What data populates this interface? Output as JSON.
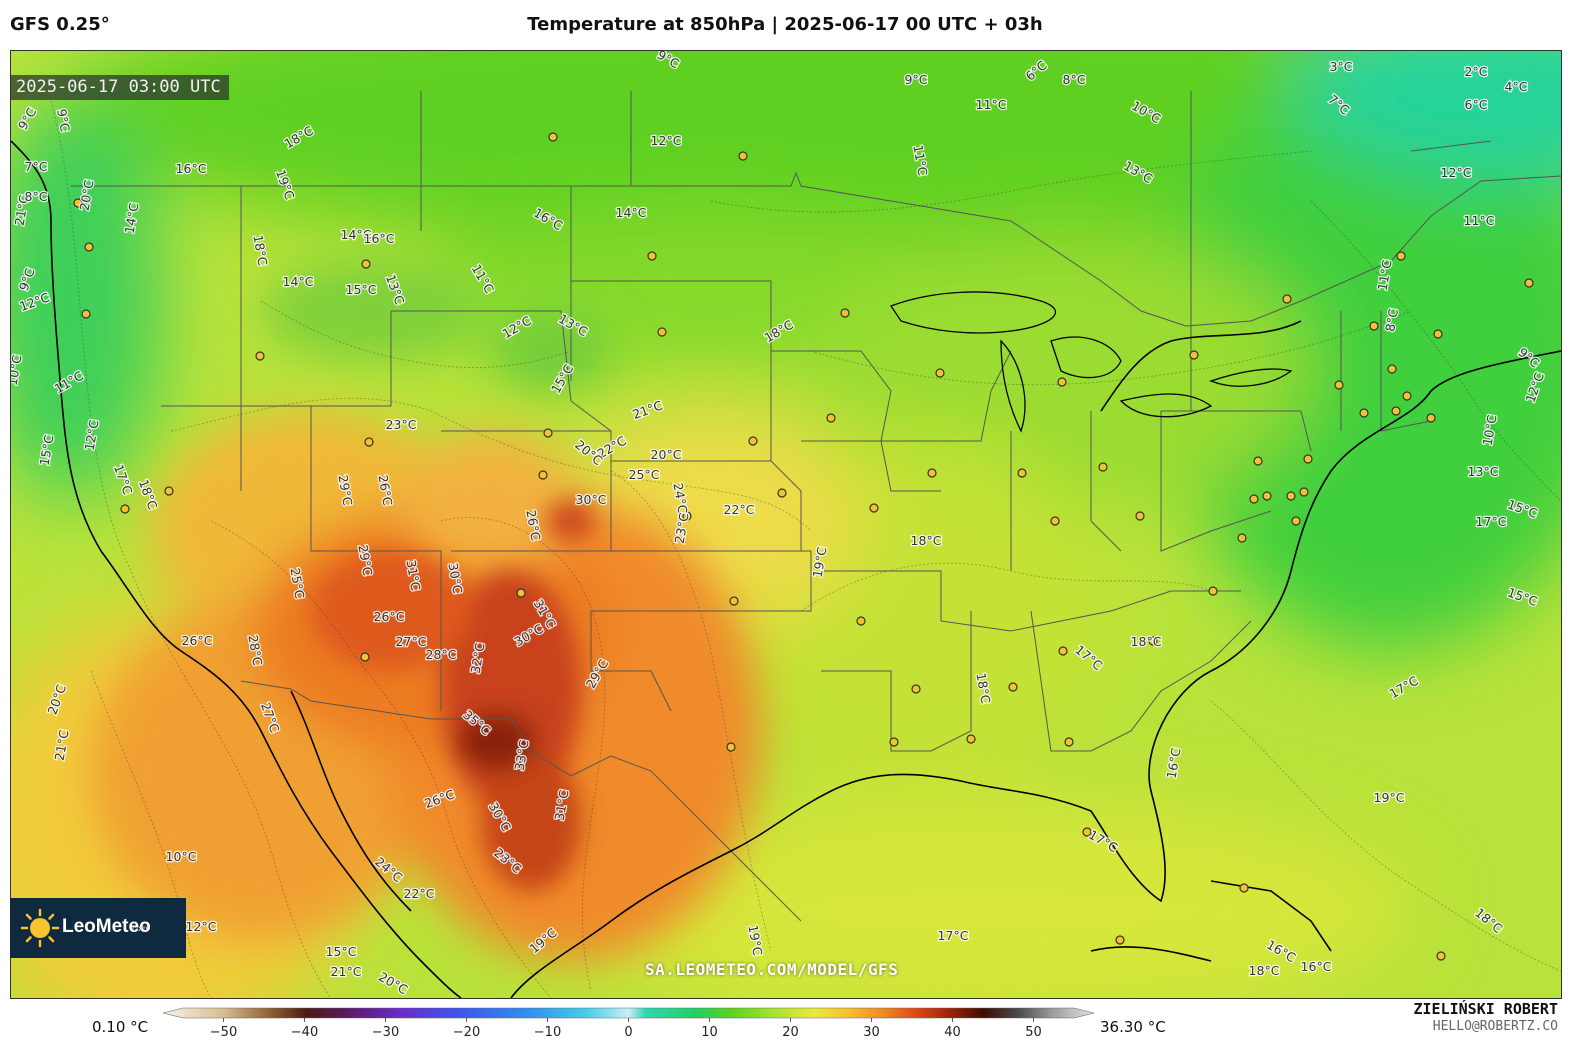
{
  "header": {
    "model": "GFS 0.25°",
    "title": "Temperature at 850hPa | 2025-06-17 00 UTC + 03h"
  },
  "map": {
    "timestamp": "2025-06-17 03:00 UTC",
    "watermark": "SA.LEOMETEO.COM/MODEL/GFS",
    "logo": {
      "text": "LeoMeteo",
      "domain": ".com"
    },
    "temperature_labels": [
      {
        "text": "3°C"
      },
      {
        "text": "2°C"
      },
      {
        "text": "4°C"
      },
      {
        "text": "6°C"
      },
      {
        "text": "7°C"
      },
      {
        "text": "8°C"
      },
      {
        "text": "9°C"
      },
      {
        "text": "6°C"
      },
      {
        "text": "9°C"
      },
      {
        "text": "11°C"
      },
      {
        "text": "10°C"
      },
      {
        "text": "13°C"
      },
      {
        "text": "12°C"
      },
      {
        "text": "11°C"
      },
      {
        "text": "12°C"
      },
      {
        "text": "9°C"
      },
      {
        "text": "18°C"
      },
      {
        "text": "16°C"
      },
      {
        "text": "19°C"
      },
      {
        "text": "16°C"
      },
      {
        "text": "14°C"
      },
      {
        "text": "14°C"
      },
      {
        "text": "16°C"
      },
      {
        "text": "18°C"
      },
      {
        "text": "13°C"
      },
      {
        "text": "15°C"
      },
      {
        "text": "14°C"
      },
      {
        "text": "11°C"
      },
      {
        "text": "12°C"
      },
      {
        "text": "13°C"
      },
      {
        "text": "15°C"
      },
      {
        "text": "18°C"
      },
      {
        "text": "21°C"
      },
      {
        "text": "22°C"
      },
      {
        "text": "20°C"
      },
      {
        "text": "20°C"
      },
      {
        "text": "25°C"
      },
      {
        "text": "24°C"
      },
      {
        "text": "23°C"
      },
      {
        "text": "22°C"
      },
      {
        "text": "30°C"
      },
      {
        "text": "26°C"
      },
      {
        "text": "23°C"
      },
      {
        "text": "29°C"
      },
      {
        "text": "26°C"
      },
      {
        "text": "29°C"
      },
      {
        "text": "31°C"
      },
      {
        "text": "30°C"
      },
      {
        "text": "31°C"
      },
      {
        "text": "26°C"
      },
      {
        "text": "27°C"
      },
      {
        "text": "28°C"
      },
      {
        "text": "32°C"
      },
      {
        "text": "30°C"
      },
      {
        "text": "29°C"
      },
      {
        "text": "35°C"
      },
      {
        "text": "33°C"
      },
      {
        "text": "31°C"
      },
      {
        "text": "30°C"
      },
      {
        "text": "26°C"
      },
      {
        "text": "23°C"
      },
      {
        "text": "24°C"
      },
      {
        "text": "22°C"
      },
      {
        "text": "25°C"
      },
      {
        "text": "27°C"
      },
      {
        "text": "28°C"
      },
      {
        "text": "26°C"
      },
      {
        "text": "20°C"
      },
      {
        "text": "21°C"
      },
      {
        "text": "21°C"
      },
      {
        "text": "20°C"
      },
      {
        "text": "19°C"
      },
      {
        "text": "19°C"
      },
      {
        "text": "19°C"
      },
      {
        "text": "17°C"
      },
      {
        "text": "18°C"
      },
      {
        "text": "17°C"
      },
      {
        "text": "18°C"
      },
      {
        "text": "18°C"
      },
      {
        "text": "17°C"
      },
      {
        "text": "16°C"
      },
      {
        "text": "19°C"
      },
      {
        "text": "17°C"
      },
      {
        "text": "18°C"
      },
      {
        "text": "16°C"
      },
      {
        "text": "15°C"
      },
      {
        "text": "15°C"
      },
      {
        "text": "13°C"
      },
      {
        "text": "10°C"
      },
      {
        "text": "9°C"
      },
      {
        "text": "12°C"
      },
      {
        "text": "11°C"
      },
      {
        "text": "8°C"
      },
      {
        "text": "11°C"
      },
      {
        "text": "10°C"
      },
      {
        "text": "11°C"
      },
      {
        "text": "12°C"
      },
      {
        "text": "15°C"
      },
      {
        "text": "14°C"
      },
      {
        "text": "17°C"
      },
      {
        "text": "18°C"
      },
      {
        "text": "20°C"
      },
      {
        "text": "21°C"
      },
      {
        "text": "9°C"
      },
      {
        "text": "7°C"
      },
      {
        "text": "8°C"
      },
      {
        "text": "9°C"
      },
      {
        "text": "12°C"
      },
      {
        "text": "10°C"
      },
      {
        "text": "12°C"
      },
      {
        "text": "15°C"
      },
      {
        "text": "16°C"
      },
      {
        "text": "18°C"
      },
      {
        "text": "17°C"
      }
    ],
    "cities_count": 74
  },
  "colorbar": {
    "min_label": "0.10 °C",
    "max_label": "36.30 °C",
    "ticks": [
      "−50",
      "−40",
      "−30",
      "−20",
      "−10",
      "0",
      "10",
      "20",
      "30",
      "40",
      "50"
    ],
    "stops": [
      {
        "v": -55,
        "c": "#f7f3e6"
      },
      {
        "v": -48,
        "c": "#d8bf95"
      },
      {
        "v": -42,
        "c": "#8a5a2e"
      },
      {
        "v": -38,
        "c": "#4a1d12"
      },
      {
        "v": -33,
        "c": "#5a1a66"
      },
      {
        "v": -27,
        "c": "#6a2cc8"
      },
      {
        "v": -20,
        "c": "#3f55ee"
      },
      {
        "v": -12,
        "c": "#2f8ff0"
      },
      {
        "v": -5,
        "c": "#45cde8"
      },
      {
        "v": 0,
        "c": "#c9eef3"
      },
      {
        "v": 2,
        "c": "#2fd6b0"
      },
      {
        "v": 8,
        "c": "#22cf66"
      },
      {
        "v": 12,
        "c": "#5ad21e"
      },
      {
        "v": 18,
        "c": "#b5e432"
      },
      {
        "v": 22,
        "c": "#eaea3c"
      },
      {
        "v": 26,
        "c": "#f7bf2e"
      },
      {
        "v": 30,
        "c": "#f08a22"
      },
      {
        "v": 34,
        "c": "#db4a16"
      },
      {
        "v": 38,
        "c": "#9e2008"
      },
      {
        "v": 42,
        "c": "#3a0d05"
      },
      {
        "v": 46,
        "c": "#4a4a4a"
      },
      {
        "v": 50,
        "c": "#9a9a9a"
      },
      {
        "v": 55,
        "c": "#e6e6e6"
      }
    ]
  },
  "author": {
    "name": "ZIELIŃSKI ROBERT",
    "email": "HELLO@ROBERTZ.CO"
  }
}
